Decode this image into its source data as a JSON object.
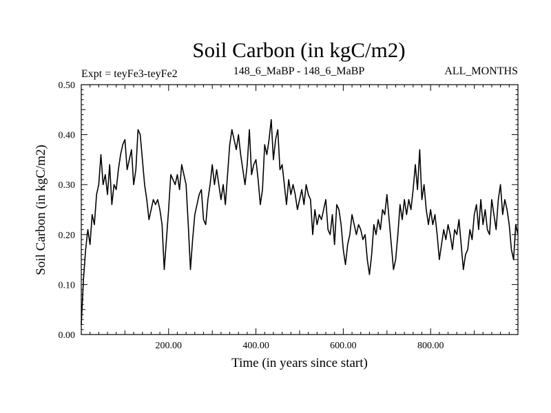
{
  "chart_data": {
    "type": "line",
    "title": "Soil Carbon (in kgC/m2)",
    "subtitle_left": "Expt = teyFe3-teyFe2",
    "subtitle_center": "148_6_MaBP - 148_6_MaBP",
    "subtitle_right": "ALL_MONTHS",
    "xlabel": "Time (in years since start)",
    "ylabel": "Soil Carbon (in kgC/m2)",
    "xlim": [
      0,
      1000
    ],
    "ylim": [
      0,
      0.5
    ],
    "xticks": [
      200,
      400,
      600,
      800
    ],
    "xtick_labels": [
      "200.00",
      "400.00",
      "600.00",
      "800.00"
    ],
    "yticks": [
      0,
      0.1,
      0.2,
      0.3,
      0.4,
      0.5
    ],
    "ytick_labels": [
      "0.00",
      "0.10",
      "0.20",
      "0.30",
      "0.40",
      "0.50"
    ],
    "grid": false,
    "series": [
      {
        "x": [
          0,
          5,
          10,
          15,
          20,
          25,
          30,
          35,
          40,
          45,
          50,
          55,
          60,
          65,
          70,
          75,
          80,
          85,
          90,
          95,
          100,
          105,
          110,
          115,
          120,
          125,
          130,
          135,
          140,
          145,
          150,
          155,
          160,
          165,
          170,
          175,
          180,
          185,
          190,
          195,
          200,
          205,
          210,
          215,
          220,
          225,
          230,
          235,
          240,
          245,
          250,
          255,
          260,
          265,
          270,
          275,
          280,
          285,
          290,
          295,
          300,
          305,
          310,
          315,
          320,
          325,
          330,
          335,
          340,
          345,
          350,
          355,
          360,
          365,
          370,
          375,
          380,
          385,
          390,
          395,
          400,
          405,
          410,
          415,
          420,
          425,
          430,
          435,
          440,
          445,
          450,
          455,
          460,
          465,
          470,
          475,
          480,
          485,
          490,
          495,
          500,
          505,
          510,
          515,
          520,
          525,
          530,
          535,
          540,
          545,
          550,
          555,
          560,
          565,
          570,
          575,
          580,
          585,
          590,
          595,
          600,
          605,
          610,
          615,
          620,
          625,
          630,
          635,
          640,
          645,
          650,
          655,
          660,
          665,
          670,
          675,
          680,
          685,
          690,
          695,
          700,
          705,
          710,
          715,
          720,
          725,
          730,
          735,
          740,
          745,
          750,
          755,
          760,
          765,
          770,
          775,
          780,
          785,
          790,
          795,
          800,
          805,
          810,
          815,
          820,
          825,
          830,
          835,
          840,
          845,
          850,
          855,
          860,
          865,
          870,
          875,
          880,
          885,
          890,
          895,
          900,
          905,
          910,
          915,
          920,
          925,
          930,
          935,
          940,
          945,
          950,
          955,
          960,
          965,
          970,
          975,
          980,
          985,
          990,
          995,
          1000
        ],
        "values": [
          0.02,
          0.11,
          0.17,
          0.21,
          0.18,
          0.24,
          0.22,
          0.28,
          0.3,
          0.36,
          0.3,
          0.32,
          0.28,
          0.34,
          0.26,
          0.3,
          0.29,
          0.33,
          0.36,
          0.38,
          0.39,
          0.33,
          0.35,
          0.37,
          0.3,
          0.33,
          0.41,
          0.4,
          0.35,
          0.3,
          0.27,
          0.23,
          0.25,
          0.27,
          0.26,
          0.27,
          0.25,
          0.22,
          0.13,
          0.19,
          0.25,
          0.32,
          0.31,
          0.3,
          0.32,
          0.29,
          0.34,
          0.32,
          0.3,
          0.22,
          0.13,
          0.19,
          0.24,
          0.26,
          0.28,
          0.29,
          0.23,
          0.22,
          0.27,
          0.3,
          0.34,
          0.3,
          0.33,
          0.3,
          0.27,
          0.3,
          0.26,
          0.32,
          0.38,
          0.41,
          0.39,
          0.37,
          0.4,
          0.36,
          0.33,
          0.3,
          0.34,
          0.41,
          0.32,
          0.34,
          0.35,
          0.31,
          0.26,
          0.29,
          0.38,
          0.36,
          0.39,
          0.43,
          0.35,
          0.39,
          0.41,
          0.33,
          0.34,
          0.3,
          0.26,
          0.31,
          0.28,
          0.3,
          0.28,
          0.25,
          0.27,
          0.29,
          0.26,
          0.3,
          0.28,
          0.27,
          0.2,
          0.25,
          0.22,
          0.24,
          0.23,
          0.25,
          0.27,
          0.21,
          0.2,
          0.24,
          0.18,
          0.26,
          0.25,
          0.22,
          0.17,
          0.14,
          0.18,
          0.2,
          0.24,
          0.22,
          0.2,
          0.22,
          0.21,
          0.19,
          0.2,
          0.15,
          0.12,
          0.16,
          0.22,
          0.2,
          0.23,
          0.21,
          0.25,
          0.24,
          0.28,
          0.23,
          0.18,
          0.13,
          0.15,
          0.2,
          0.26,
          0.23,
          0.27,
          0.24,
          0.27,
          0.25,
          0.29,
          0.34,
          0.29,
          0.37,
          0.27,
          0.3,
          0.25,
          0.22,
          0.25,
          0.22,
          0.24,
          0.2,
          0.15,
          0.18,
          0.21,
          0.19,
          0.22,
          0.2,
          0.17,
          0.21,
          0.2,
          0.23,
          0.18,
          0.13,
          0.16,
          0.17,
          0.21,
          0.19,
          0.24,
          0.26,
          0.21,
          0.27,
          0.22,
          0.25,
          0.21,
          0.2,
          0.27,
          0.24,
          0.21,
          0.27,
          0.3,
          0.24,
          0.27,
          0.25,
          0.22,
          0.17,
          0.15,
          0.22,
          0.2
        ]
      }
    ]
  }
}
